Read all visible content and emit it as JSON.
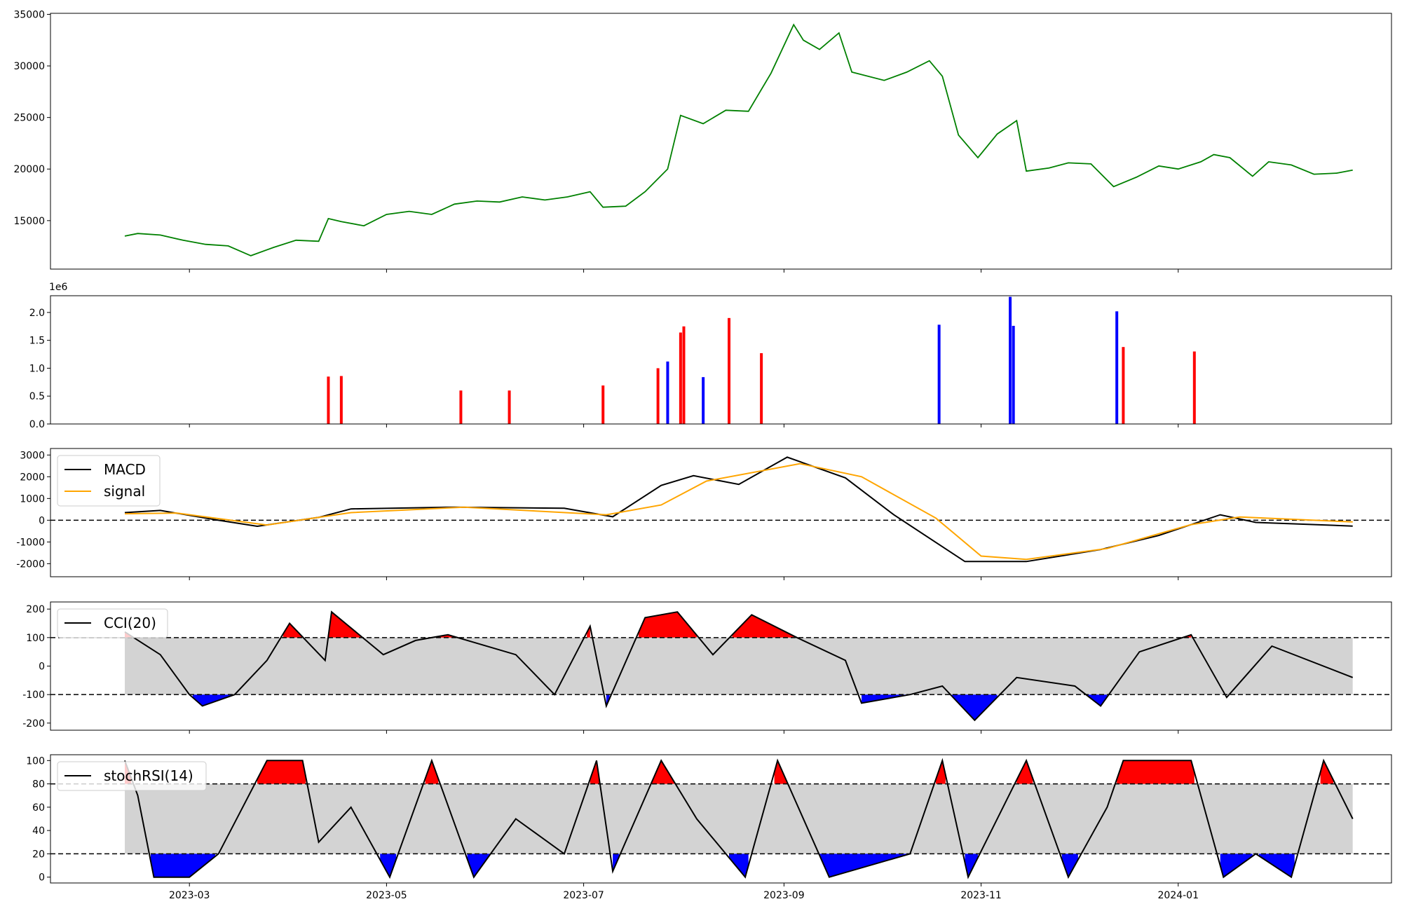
{
  "chart_data": [
    {
      "panel": "price",
      "type": "line",
      "xlabel": "",
      "ylabel": "",
      "ylim": [
        10300,
        35100
      ],
      "yticks": [
        15000,
        20000,
        25000,
        30000,
        35000
      ],
      "series": [
        {
          "color": "#008000",
          "points": [
            [
              "2023-02-09",
              13500
            ],
            [
              "2023-02-13",
              13750
            ],
            [
              "2023-02-20",
              13600
            ],
            [
              "2023-02-27",
              13100
            ],
            [
              "2023-03-06",
              12700
            ],
            [
              "2023-03-13",
              12550
            ],
            [
              "2023-03-20",
              11600
            ],
            [
              "2023-03-27",
              12400
            ],
            [
              "2023-04-03",
              13100
            ],
            [
              "2023-04-10",
              13000
            ],
            [
              "2023-04-13",
              15200
            ],
            [
              "2023-04-17",
              14900
            ],
            [
              "2023-04-24",
              14500
            ],
            [
              "2023-05-01",
              15600
            ],
            [
              "2023-05-08",
              15900
            ],
            [
              "2023-05-15",
              15600
            ],
            [
              "2023-05-22",
              16600
            ],
            [
              "2023-05-29",
              16900
            ],
            [
              "2023-06-05",
              16800
            ],
            [
              "2023-06-12",
              17300
            ],
            [
              "2023-06-19",
              17000
            ],
            [
              "2023-06-26",
              17300
            ],
            [
              "2023-07-03",
              17800
            ],
            [
              "2023-07-07",
              16300
            ],
            [
              "2023-07-14",
              16400
            ],
            [
              "2023-07-20",
              17800
            ],
            [
              "2023-07-27",
              20000
            ],
            [
              "2023-07-31",
              25200
            ],
            [
              "2023-08-07",
              24400
            ],
            [
              "2023-08-14",
              25700
            ],
            [
              "2023-08-21",
              25600
            ],
            [
              "2023-08-28",
              29300
            ],
            [
              "2023-09-04",
              34000
            ],
            [
              "2023-09-07",
              32500
            ],
            [
              "2023-09-12",
              31600
            ],
            [
              "2023-09-18",
              33200
            ],
            [
              "2023-09-22",
              29400
            ],
            [
              "2023-10-02",
              28600
            ],
            [
              "2023-10-09",
              29400
            ],
            [
              "2023-10-16",
              30500
            ],
            [
              "2023-10-20",
              29000
            ],
            [
              "2023-10-25",
              23300
            ],
            [
              "2023-10-31",
              21100
            ],
            [
              "2023-11-06",
              23400
            ],
            [
              "2023-11-12",
              24700
            ],
            [
              "2023-11-15",
              19800
            ],
            [
              "2023-11-22",
              20100
            ],
            [
              "2023-11-28",
              20600
            ],
            [
              "2023-12-05",
              20500
            ],
            [
              "2023-12-12",
              18300
            ],
            [
              "2023-12-19",
              19200
            ],
            [
              "2023-12-26",
              20300
            ],
            [
              "2024-01-01",
              20000
            ],
            [
              "2024-01-08",
              20700
            ],
            [
              "2024-01-12",
              21400
            ],
            [
              "2024-01-17",
              21100
            ],
            [
              "2024-01-24",
              19300
            ],
            [
              "2024-01-29",
              20700
            ],
            [
              "2024-02-05",
              20400
            ],
            [
              "2024-02-12",
              19500
            ],
            [
              "2024-02-19",
              19600
            ],
            [
              "2024-02-24",
              19900
            ]
          ]
        }
      ]
    },
    {
      "panel": "volume",
      "type": "bar",
      "ylabel": "",
      "ylim": [
        0,
        2300000
      ],
      "yticks": [
        0,
        500000,
        1000000,
        1500000,
        2000000
      ],
      "ytick_labels": [
        "0.0",
        "0.5",
        "1.0",
        "1.5",
        "2.0"
      ],
      "offset_text": "1e6",
      "colors": {
        "up": "#ff0000",
        "down": "#0000ff",
        "flat": "#000000"
      },
      "bars": [
        [
          "2023-04-13",
          850000,
          "up"
        ],
        [
          "2023-04-17",
          860000,
          "up"
        ],
        [
          "2023-05-24",
          600000,
          "up"
        ],
        [
          "2023-06-08",
          600000,
          "up"
        ],
        [
          "2023-07-07",
          690000,
          "up"
        ],
        [
          "2023-07-24",
          1000000,
          "up"
        ],
        [
          "2023-07-27",
          1120000,
          "down"
        ],
        [
          "2023-07-31",
          1640000,
          "up"
        ],
        [
          "2023-08-01",
          1750000,
          "up"
        ],
        [
          "2023-08-07",
          840000,
          "down"
        ],
        [
          "2023-08-15",
          1900000,
          "up"
        ],
        [
          "2023-08-25",
          1270000,
          "up"
        ],
        [
          "2023-10-19",
          1780000,
          "down"
        ],
        [
          "2023-11-10",
          2280000,
          "down"
        ],
        [
          "2023-11-11",
          1760000,
          "down"
        ],
        [
          "2023-12-13",
          2020000,
          "down"
        ],
        [
          "2023-12-15",
          1380000,
          "up"
        ],
        [
          "2024-01-06",
          1300000,
          "up"
        ]
      ]
    },
    {
      "panel": "macd",
      "type": "line",
      "ylim": [
        -2600,
        3300
      ],
      "yticks": [
        -2000,
        -1000,
        0,
        1000,
        2000,
        3000
      ],
      "legend": [
        {
          "label": "MACD",
          "color": "#000000"
        },
        {
          "label": "signal",
          "color": "#ffa500"
        }
      ],
      "series": [
        {
          "name": "MACD",
          "color": "#000000",
          "points": [
            [
              "2023-02-09",
              350
            ],
            [
              "2023-02-20",
              450
            ],
            [
              "2023-03-10",
              0
            ],
            [
              "2023-03-22",
              -280
            ],
            [
              "2023-04-10",
              130
            ],
            [
              "2023-04-20",
              520
            ],
            [
              "2023-05-22",
              600
            ],
            [
              "2023-06-25",
              550
            ],
            [
              "2023-07-10",
              160
            ],
            [
              "2023-07-25",
              1600
            ],
            [
              "2023-08-04",
              2050
            ],
            [
              "2023-08-18",
              1650
            ],
            [
              "2023-09-02",
              2900
            ],
            [
              "2023-09-20",
              1950
            ],
            [
              "2023-10-05",
              250
            ],
            [
              "2023-10-27",
              -1900
            ],
            [
              "2023-11-15",
              -1900
            ],
            [
              "2023-12-08",
              -1350
            ],
            [
              "2023-12-26",
              -700
            ],
            [
              "2024-01-14",
              250
            ],
            [
              "2024-01-25",
              -100
            ],
            [
              "2024-02-24",
              -270
            ]
          ]
        },
        {
          "name": "signal",
          "color": "#ffa500",
          "points": [
            [
              "2023-02-09",
              300
            ],
            [
              "2023-02-25",
              330
            ],
            [
              "2023-03-25",
              -220
            ],
            [
              "2023-04-20",
              350
            ],
            [
              "2023-05-25",
              600
            ],
            [
              "2023-07-08",
              250
            ],
            [
              "2023-07-25",
              700
            ],
            [
              "2023-08-08",
              1800
            ],
            [
              "2023-09-06",
              2600
            ],
            [
              "2023-09-25",
              2000
            ],
            [
              "2023-10-18",
              100
            ],
            [
              "2023-11-01",
              -1650
            ],
            [
              "2023-11-15",
              -1800
            ],
            [
              "2023-12-10",
              -1300
            ],
            [
              "2024-01-05",
              -200
            ],
            [
              "2024-01-20",
              150
            ],
            [
              "2024-02-24",
              -80
            ]
          ]
        }
      ],
      "hline": 0
    },
    {
      "panel": "cci",
      "type": "line",
      "ylim": [
        -225,
        225
      ],
      "yticks": [
        -200,
        -100,
        0,
        100,
        200
      ],
      "legend": [
        {
          "label": "CCI(20)",
          "color": "#000000"
        }
      ],
      "band": [
        -100,
        100
      ],
      "series": [
        {
          "name": "CCI(20)",
          "color": "#000000",
          "points": [
            [
              "2023-02-09",
              120
            ],
            [
              "2023-02-20",
              40
            ],
            [
              "2023-03-01",
              -100
            ],
            [
              "2023-03-05",
              -140
            ],
            [
              "2023-03-15",
              -100
            ],
            [
              "2023-03-25",
              20
            ],
            [
              "2023-04-01",
              150
            ],
            [
              "2023-04-12",
              20
            ],
            [
              "2023-04-14",
              190
            ],
            [
              "2023-04-30",
              40
            ],
            [
              "2023-05-10",
              90
            ],
            [
              "2023-05-20",
              110
            ],
            [
              "2023-06-10",
              40
            ],
            [
              "2023-06-22",
              -100
            ],
            [
              "2023-07-03",
              140
            ],
            [
              "2023-07-08",
              -140
            ],
            [
              "2023-07-20",
              170
            ],
            [
              "2023-07-30",
              190
            ],
            [
              "2023-08-10",
              40
            ],
            [
              "2023-08-22",
              180
            ],
            [
              "2023-09-05",
              100
            ],
            [
              "2023-09-20",
              20
            ],
            [
              "2023-09-25",
              -130
            ],
            [
              "2023-10-10",
              -100
            ],
            [
              "2023-10-20",
              -70
            ],
            [
              "2023-10-30",
              -190
            ],
            [
              "2023-11-12",
              -40
            ],
            [
              "2023-11-30",
              -70
            ],
            [
              "2023-12-08",
              -140
            ],
            [
              "2023-12-20",
              50
            ],
            [
              "2024-01-05",
              110
            ],
            [
              "2024-01-16",
              -110
            ],
            [
              "2024-01-30",
              70
            ],
            [
              "2024-02-24",
              -40
            ]
          ]
        }
      ]
    },
    {
      "panel": "stochrsi",
      "type": "line",
      "ylim": [
        -5,
        105
      ],
      "yticks": [
        0,
        20,
        40,
        60,
        80,
        100
      ],
      "legend": [
        {
          "label": "stochRSI(14)",
          "color": "#000000"
        }
      ],
      "band": [
        20,
        80
      ],
      "series": [
        {
          "name": "stochRSI(14)",
          "color": "#000000",
          "points": [
            [
              "2023-02-09",
              100
            ],
            [
              "2023-02-13",
              70
            ],
            [
              "2023-02-18",
              0
            ],
            [
              "2023-03-01",
              0
            ],
            [
              "2023-03-10",
              20
            ],
            [
              "2023-03-25",
              100
            ],
            [
              "2023-04-05",
              100
            ],
            [
              "2023-04-10",
              30
            ],
            [
              "2023-04-20",
              60
            ],
            [
              "2023-05-02",
              0
            ],
            [
              "2023-05-15",
              100
            ],
            [
              "2023-05-28",
              0
            ],
            [
              "2023-06-10",
              50
            ],
            [
              "2023-06-25",
              20
            ],
            [
              "2023-07-05",
              100
            ],
            [
              "2023-07-10",
              5
            ],
            [
              "2023-07-25",
              100
            ],
            [
              "2023-08-05",
              50
            ],
            [
              "2023-08-20",
              0
            ],
            [
              "2023-08-30",
              100
            ],
            [
              "2023-09-15",
              0
            ],
            [
              "2023-10-10",
              20
            ],
            [
              "2023-10-20",
              100
            ],
            [
              "2023-10-28",
              0
            ],
            [
              "2023-11-15",
              100
            ],
            [
              "2023-11-28",
              0
            ],
            [
              "2023-12-10",
              60
            ],
            [
              "2023-12-15",
              100
            ],
            [
              "2024-01-05",
              100
            ],
            [
              "2024-01-15",
              0
            ],
            [
              "2024-01-25",
              20
            ],
            [
              "2024-02-05",
              0
            ],
            [
              "2024-02-15",
              100
            ],
            [
              "2024-02-24",
              50
            ]
          ]
        }
      ]
    }
  ],
  "x_axis": {
    "ticks": [
      "2023-03-01",
      "2023-05-01",
      "2023-07-01",
      "2023-09-01",
      "2023-11-01",
      "2024-01-01"
    ],
    "tick_labels": [
      "2023-03",
      "2023-05",
      "2023-07",
      "2023-09",
      "2023-11",
      "2024-01"
    ],
    "xlim": [
      "2023-01-17",
      "2024-03-07"
    ]
  }
}
